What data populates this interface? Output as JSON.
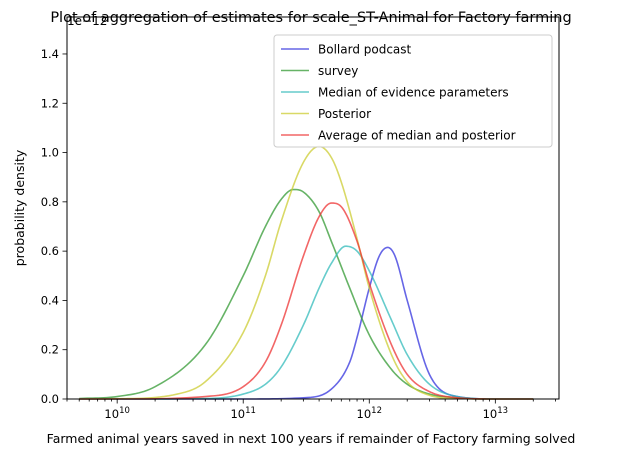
{
  "chart_data": {
    "type": "line",
    "title": "Plot of aggregation of estimates for scale_ST-Animal for Factory farming",
    "xlabel": "Farmed animal years saved in next 100 years if remainder of Factory farming solved",
    "ylabel": "probability density",
    "y_offset_label": "1e−12",
    "x_scale": "log",
    "xlim": [
      4000000000.0,
      32000000000000.0
    ],
    "ylim": [
      0,
      1.55
    ],
    "x_ticks": [
      {
        "base": "10",
        "exp": "10",
        "value": 10000000000.0
      },
      {
        "base": "10",
        "exp": "11",
        "value": 100000000000.0
      },
      {
        "base": "10",
        "exp": "12",
        "value": 1000000000000.0
      },
      {
        "base": "10",
        "exp": "13",
        "value": 10000000000000.0
      }
    ],
    "y_ticks": [
      {
        "label": "0.0",
        "value": 0.0
      },
      {
        "label": "0.2",
        "value": 0.2
      },
      {
        "label": "0.4",
        "value": 0.4
      },
      {
        "label": "0.6",
        "value": 0.6
      },
      {
        "label": "0.8",
        "value": 0.8
      },
      {
        "label": "1.0",
        "value": 1.0
      },
      {
        "label": "1.2",
        "value": 1.2
      },
      {
        "label": "1.4",
        "value": 1.4
      }
    ],
    "legend_position": "top-right",
    "grid": false,
    "series": [
      {
        "name": "Bollard podcast",
        "color": "#3333dd",
        "x": [
          5000000000.0,
          10000000000.0,
          100000000000.0,
          300000000000.0,
          500000000000.0,
          700000000000.0,
          800000000000.0,
          1000000000000.0,
          1200000000000.0,
          1400000000000.0,
          1600000000000.0,
          2000000000000.0,
          3000000000000.0,
          5000000000000.0,
          10000000000000.0,
          20000000000000.0
        ],
        "y": [
          0,
          0,
          0,
          0.005,
          0.04,
          0.15,
          0.25,
          0.45,
          0.58,
          0.615,
          0.58,
          0.4,
          0.1,
          0.01,
          0,
          0
        ]
      },
      {
        "name": "survey",
        "color": "#339933",
        "x": [
          5000000000.0,
          10000000000.0,
          20000000000.0,
          50000000000.0,
          100000000000.0,
          150000000000.0,
          200000000000.0,
          250000000000.0,
          300000000000.0,
          400000000000.0,
          500000000000.0,
          700000000000.0,
          1000000000000.0,
          1500000000000.0,
          2000000000000.0,
          3000000000000.0,
          5000000000000.0,
          10000000000000.0,
          20000000000000.0
        ],
        "y": [
          0.002,
          0.01,
          0.05,
          0.22,
          0.5,
          0.7,
          0.81,
          0.85,
          0.84,
          0.76,
          0.64,
          0.45,
          0.26,
          0.12,
          0.06,
          0.02,
          0.005,
          0,
          0
        ]
      },
      {
        "name": "Median of evidence parameters",
        "color": "#33bbbb",
        "x": [
          5000000000.0,
          10000000000.0,
          50000000000.0,
          100000000000.0,
          150000000000.0,
          200000000000.0,
          300000000000.0,
          400000000000.0,
          500000000000.0,
          650000000000.0,
          800000000000.0,
          1000000000000.0,
          1500000000000.0,
          2000000000000.0,
          3000000000000.0,
          5000000000000.0,
          10000000000000.0,
          20000000000000.0
        ],
        "y": [
          0,
          0,
          0.002,
          0.02,
          0.06,
          0.13,
          0.3,
          0.45,
          0.55,
          0.62,
          0.6,
          0.52,
          0.32,
          0.18,
          0.06,
          0.01,
          0,
          0
        ]
      },
      {
        "name": "Posterior",
        "color": "#cccc33",
        "x": [
          5000000000.0,
          10000000000.0,
          30000000000.0,
          50000000000.0,
          100000000000.0,
          150000000000.0,
          200000000000.0,
          300000000000.0,
          400000000000.0,
          500000000000.0,
          600000000000.0,
          800000000000.0,
          1000000000000.0,
          1500000000000.0,
          2000000000000.0,
          3000000000000.0,
          5000000000000.0,
          10000000000000.0,
          20000000000000.0
        ],
        "y": [
          0,
          0.001,
          0.02,
          0.07,
          0.27,
          0.5,
          0.72,
          0.96,
          1.025,
          0.98,
          0.88,
          0.65,
          0.45,
          0.18,
          0.07,
          0.015,
          0.002,
          0,
          0
        ]
      },
      {
        "name": "Average of median and posterior",
        "color": "#ee3333",
        "x": [
          5000000000.0,
          10000000000.0,
          50000000000.0,
          100000000000.0,
          150000000000.0,
          200000000000.0,
          300000000000.0,
          400000000000.0,
          500000000000.0,
          600000000000.0,
          800000000000.0,
          1000000000000.0,
          1500000000000.0,
          2000000000000.0,
          3000000000000.0,
          5000000000000.0,
          10000000000000.0,
          20000000000000.0
        ],
        "y": [
          0,
          0,
          0.01,
          0.05,
          0.15,
          0.3,
          0.58,
          0.74,
          0.795,
          0.78,
          0.64,
          0.47,
          0.22,
          0.1,
          0.03,
          0.005,
          0,
          0
        ]
      }
    ]
  }
}
